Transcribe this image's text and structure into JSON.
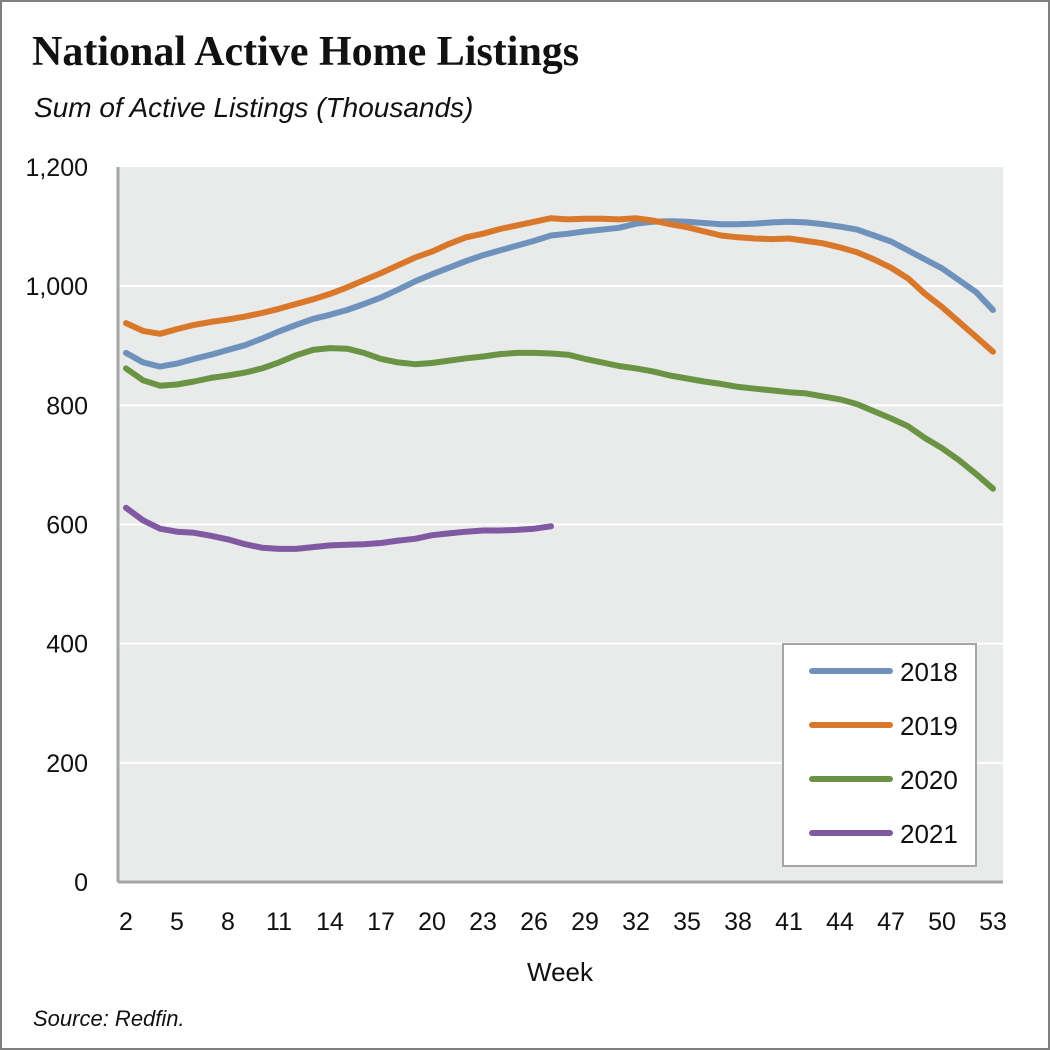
{
  "header": {
    "title": "National Active Home Listings",
    "subtitle": "Sum of Active Listings (Thousands)"
  },
  "footer": {
    "source": "Source: Redfin."
  },
  "chart_data": {
    "type": "line",
    "title": "National Active Home Listings",
    "subtitle": "Sum of Active Listings (Thousands)",
    "xlabel": "Week",
    "ylabel": "",
    "xlim": [
      2,
      53
    ],
    "ylim": [
      0,
      1200
    ],
    "x_ticks": [
      2,
      5,
      8,
      11,
      14,
      17,
      20,
      23,
      26,
      29,
      32,
      35,
      38,
      41,
      44,
      47,
      50,
      53
    ],
    "y_ticks": [
      0,
      200,
      400,
      600,
      800,
      1000,
      1200
    ],
    "y_tick_labels": [
      "0",
      "200",
      "400",
      "600",
      "800",
      "1,000",
      "1,200"
    ],
    "grid": true,
    "legend_position": "bottom-right",
    "background_color": "#e9eaea",
    "series": [
      {
        "name": "2018",
        "color": "#6f92bd",
        "x": [
          2,
          3,
          4,
          5,
          6,
          7,
          8,
          9,
          10,
          11,
          12,
          13,
          14,
          15,
          16,
          17,
          18,
          19,
          20,
          21,
          22,
          23,
          24,
          25,
          26,
          27,
          28,
          29,
          30,
          31,
          32,
          33,
          34,
          35,
          36,
          37,
          38,
          39,
          40,
          41,
          42,
          43,
          44,
          45,
          46,
          47,
          48,
          49,
          50,
          51,
          52,
          53
        ],
        "values": [
          888,
          872,
          865,
          870,
          878,
          885,
          893,
          901,
          912,
          924,
          935,
          945,
          952,
          960,
          970,
          981,
          994,
          1008,
          1020,
          1031,
          1042,
          1052,
          1060,
          1068,
          1076,
          1085,
          1088,
          1092,
          1095,
          1098,
          1105,
          1108,
          1109,
          1108,
          1106,
          1104,
          1104,
          1105,
          1107,
          1108,
          1107,
          1104,
          1100,
          1095,
          1085,
          1075,
          1060,
          1045,
          1030,
          1010,
          990,
          960
        ]
      },
      {
        "name": "2019",
        "color": "#d9782a",
        "x": [
          2,
          3,
          4,
          5,
          6,
          7,
          8,
          9,
          10,
          11,
          12,
          13,
          14,
          15,
          16,
          17,
          18,
          19,
          20,
          21,
          22,
          23,
          24,
          25,
          26,
          27,
          28,
          29,
          30,
          31,
          32,
          33,
          34,
          35,
          36,
          37,
          38,
          39,
          40,
          41,
          42,
          43,
          44,
          45,
          46,
          47,
          48,
          49,
          50,
          51,
          52,
          53
        ],
        "values": [
          938,
          925,
          920,
          928,
          935,
          940,
          944,
          949,
          955,
          962,
          970,
          978,
          987,
          998,
          1010,
          1022,
          1035,
          1048,
          1058,
          1071,
          1082,
          1088,
          1096,
          1102,
          1108,
          1114,
          1112,
          1113,
          1113,
          1112,
          1114,
          1110,
          1104,
          1099,
          1092,
          1085,
          1082,
          1080,
          1079,
          1080,
          1076,
          1072,
          1065,
          1057,
          1045,
          1031,
          1013,
          987,
          965,
          940,
          915,
          890
        ]
      },
      {
        "name": "2020",
        "color": "#6a9444",
        "x": [
          2,
          3,
          4,
          5,
          6,
          7,
          8,
          9,
          10,
          11,
          12,
          13,
          14,
          15,
          16,
          17,
          18,
          19,
          20,
          21,
          22,
          23,
          24,
          25,
          26,
          27,
          28,
          29,
          30,
          31,
          32,
          33,
          34,
          35,
          36,
          37,
          38,
          39,
          40,
          41,
          42,
          43,
          44,
          45,
          46,
          47,
          48,
          49,
          50,
          51,
          52,
          53
        ],
        "values": [
          862,
          842,
          833,
          835,
          840,
          846,
          850,
          855,
          862,
          872,
          884,
          893,
          896,
          895,
          888,
          878,
          872,
          869,
          871,
          875,
          879,
          882,
          886,
          888,
          888,
          887,
          885,
          878,
          872,
          866,
          862,
          857,
          850,
          845,
          840,
          836,
          831,
          828,
          825,
          822,
          820,
          815,
          810,
          802,
          790,
          778,
          765,
          745,
          728,
          708,
          685,
          660
        ]
      },
      {
        "name": "2021",
        "color": "#8059a2",
        "x": [
          2,
          3,
          4,
          5,
          6,
          7,
          8,
          9,
          10,
          11,
          12,
          13,
          14,
          15,
          16,
          17,
          18,
          19,
          20,
          21,
          22,
          23,
          24,
          25,
          26,
          27
        ],
        "values": [
          628,
          607,
          593,
          588,
          586,
          581,
          575,
          567,
          561,
          559,
          559,
          562,
          565,
          566,
          567,
          569,
          573,
          576,
          582,
          585,
          588,
          590,
          590,
          591,
          593,
          597
        ]
      }
    ]
  }
}
